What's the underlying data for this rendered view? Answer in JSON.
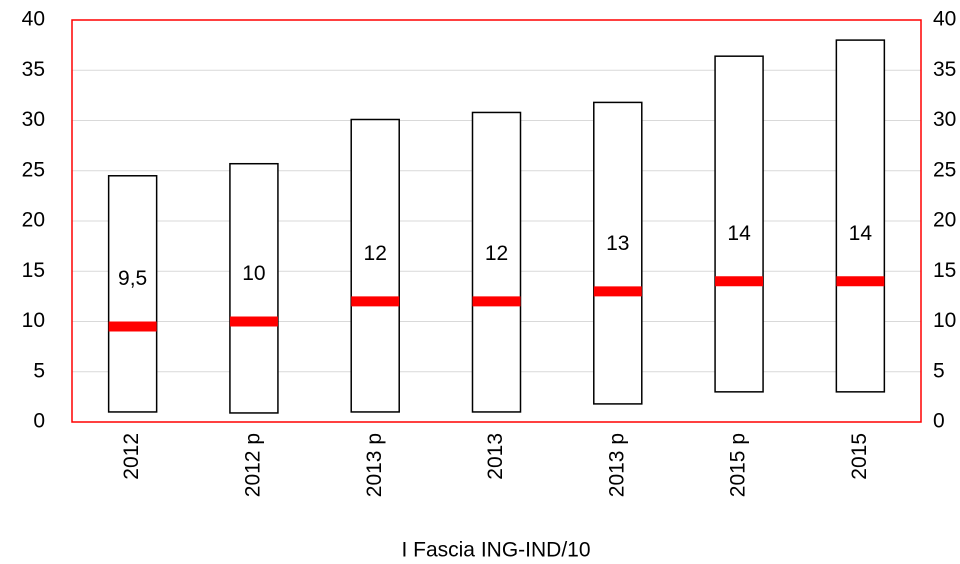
{
  "chart_data": {
    "type": "range_bar",
    "x_label": "I Fascia ING-IND/10",
    "categories": [
      "2012",
      "2012 p",
      "2013 p",
      "2013",
      "2013 p",
      "2015 p",
      "2015"
    ],
    "low": [
      1,
      0.9,
      1,
      1,
      1.8,
      3,
      3
    ],
    "high": [
      24.5,
      25.7,
      30.1,
      30.8,
      31.8,
      36.4,
      38
    ],
    "values": [
      9.5,
      10,
      12,
      12,
      13,
      14,
      14
    ],
    "value_labels": [
      "9,5",
      "10",
      "12",
      "12",
      "13",
      "14",
      "14"
    ],
    "color": "#ff0000",
    "bar_color": "#ffffff",
    "ylim": [
      0,
      40
    ],
    "yticks": [
      0,
      5,
      10,
      15,
      20,
      25,
      30,
      35,
      40
    ],
    "y2lim": [
      0,
      40
    ],
    "y2ticks": [
      0,
      5,
      10,
      15,
      20,
      25,
      30,
      35,
      40
    ],
    "grid": true
  }
}
